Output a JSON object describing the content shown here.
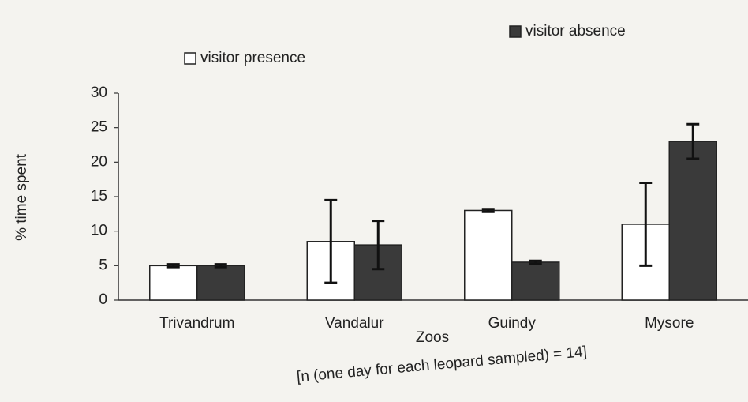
{
  "chart_data": {
    "type": "bar",
    "ylabel": "% time spent",
    "xlabel": "Zoos",
    "note": "[n (one day for each leopard sampled) = 14]",
    "categories": [
      "Trivandrum",
      "Vandalur",
      "Guindy",
      "Mysore"
    ],
    "series": [
      {
        "name": "visitor presence",
        "color": "#ffffff",
        "values": [
          5,
          8.5,
          13,
          11
        ],
        "errors": [
          0.2,
          6,
          0.2,
          6
        ]
      },
      {
        "name": "visitor absence",
        "color": "#3a3a3a",
        "values": [
          5,
          8,
          5.5,
          23
        ],
        "errors": [
          0.2,
          3.5,
          0.2,
          2.5
        ]
      }
    ],
    "ylim": [
      0,
      30
    ],
    "yticks": [
      0,
      5,
      10,
      15,
      20,
      25,
      30
    ]
  }
}
